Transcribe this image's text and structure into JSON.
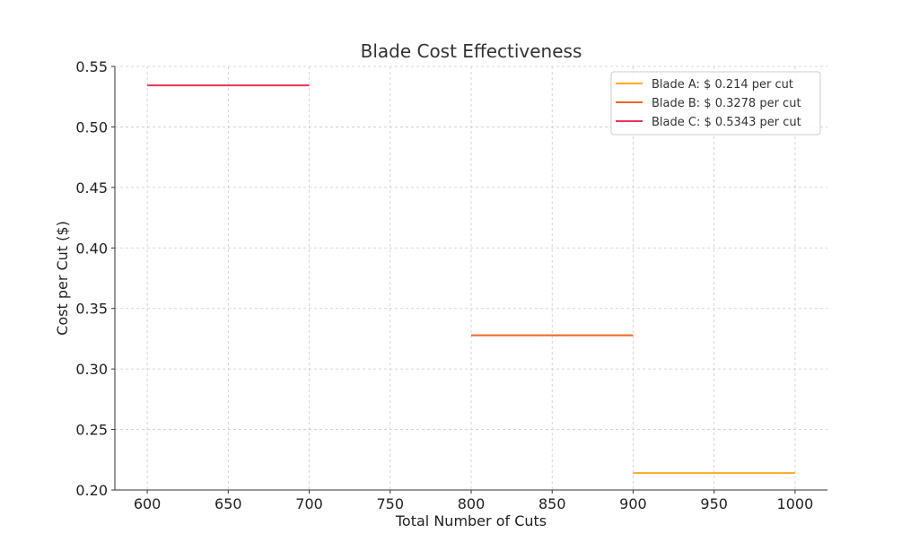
{
  "chart_data": {
    "type": "line",
    "title": "Blade Cost Effectiveness",
    "xlabel": "Total Number of Cuts",
    "ylabel": "Cost per Cut ($)",
    "xlim": [
      580,
      1020
    ],
    "ylim": [
      0.2,
      0.55
    ],
    "xticks": [
      600,
      650,
      700,
      750,
      800,
      850,
      900,
      950,
      1000
    ],
    "yticks": [
      0.2,
      0.25,
      0.3,
      0.35,
      0.4,
      0.45,
      0.5,
      0.55
    ],
    "xtick_labels": [
      "600",
      "650",
      "700",
      "750",
      "800",
      "850",
      "900",
      "950",
      "1000"
    ],
    "ytick_labels": [
      "0.20",
      "0.25",
      "0.30",
      "0.35",
      "0.40",
      "0.45",
      "0.50",
      "0.55"
    ],
    "grid": true,
    "legend_position": "top-right",
    "series": [
      {
        "name": "Blade A: $ 0.214 per cut",
        "color": "#ffaa22",
        "x": [
          900,
          1000
        ],
        "y": [
          0.214,
          0.214
        ]
      },
      {
        "name": "Blade B: $ 0.3278 per cut",
        "color": "#ee6622",
        "x": [
          800,
          900
        ],
        "y": [
          0.3278,
          0.3278
        ]
      },
      {
        "name": "Blade C: $ 0.5343 per cut",
        "color": "#ee3355",
        "x": [
          600,
          700
        ],
        "y": [
          0.5343,
          0.5343
        ]
      }
    ]
  }
}
